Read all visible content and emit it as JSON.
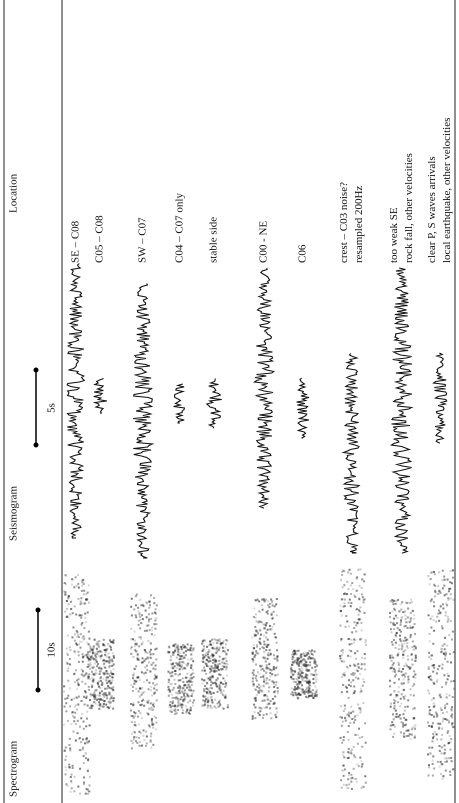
{
  "header": {
    "columns": [
      "Spectrogram",
      "Seismogram",
      "Location"
    ],
    "spectrogram_scale": "10s",
    "seismogram_scale": "5s"
  },
  "rows": [
    {
      "location": [
        "SE – C08"
      ]
    },
    {
      "location": [
        "C05 – C08"
      ]
    },
    {
      "location": [
        "SW – C07"
      ]
    },
    {
      "location": [
        "C04 – C07 only"
      ]
    },
    {
      "location": [
        "stable side"
      ]
    },
    {
      "location": [
        "C00 - NE"
      ]
    },
    {
      "location": [
        "C06"
      ]
    },
    {
      "location": [
        "crest – C03 noise?",
        "resampled 200Hz"
      ]
    },
    {
      "location": [
        "too weak SE",
        "rock fall, other velocities"
      ]
    },
    {
      "location": [
        "clear P, S waves arrivals",
        "local earthquake, other velocities"
      ]
    }
  ]
}
